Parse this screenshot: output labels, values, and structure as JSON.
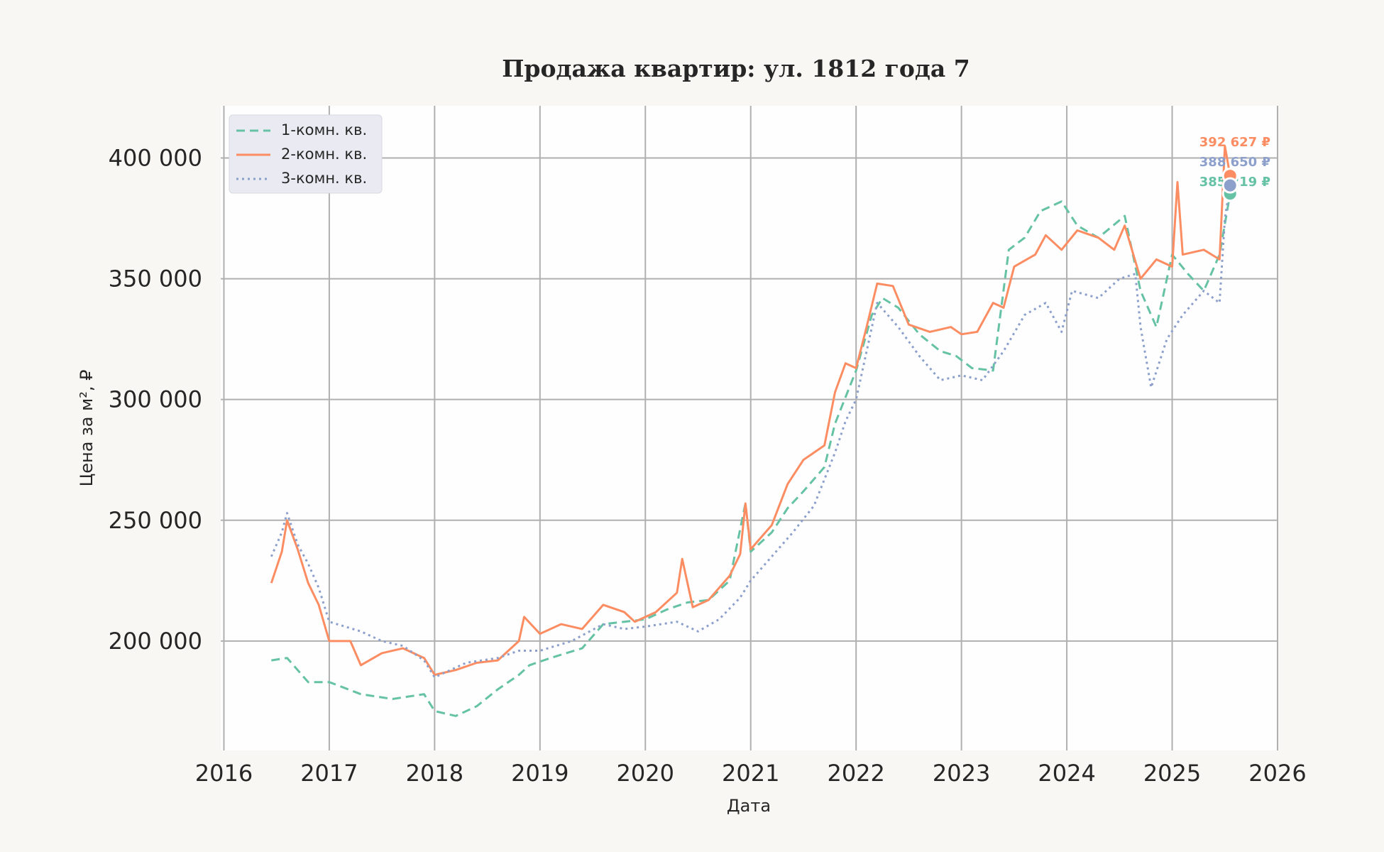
{
  "chart_data": {
    "type": "line",
    "title": "Продажа квартир: ул. 1812 года 7",
    "xlabel": "Дата",
    "ylabel": "Цена за м², ₽",
    "xlim": [
      2015.97,
      2026.0
    ],
    "ylim": [
      154700,
      421600
    ],
    "grid": true,
    "legend_position": "top-left",
    "x_ticks": [
      "2016",
      "2017",
      "2018",
      "2019",
      "2020",
      "2021",
      "2022",
      "2023",
      "2024",
      "2025",
      "2026"
    ],
    "y_ticks": [
      {
        "value": 200000,
        "label": "200 000"
      },
      {
        "value": 250000,
        "label": "250 000"
      },
      {
        "value": 300000,
        "label": "300 000"
      },
      {
        "value": 350000,
        "label": "350 000"
      },
      {
        "value": 400000,
        "label": "400 000"
      }
    ],
    "series": [
      {
        "name": "1-комн. кв.",
        "color": "#66c2a5",
        "style": "dashed",
        "end_label": "385 219 ₽",
        "x": [
          2016.45,
          2016.6,
          2016.8,
          2017.0,
          2017.3,
          2017.6,
          2017.9,
          2018.0,
          2018.2,
          2018.4,
          2018.6,
          2018.8,
          2018.9,
          2019.1,
          2019.4,
          2019.6,
          2019.8,
          2020.0,
          2020.2,
          2020.4,
          2020.6,
          2020.8,
          2020.95,
          2021.0,
          2021.2,
          2021.35,
          2021.5,
          2021.7,
          2021.8,
          2022.0,
          2022.15,
          2022.25,
          2022.4,
          2022.6,
          2022.8,
          2022.95,
          2023.1,
          2023.3,
          2023.45,
          2023.6,
          2023.75,
          2023.95,
          2024.1,
          2024.3,
          2024.55,
          2024.7,
          2024.85,
          2025.0,
          2025.15,
          2025.3,
          2025.45,
          2025.55
        ],
        "y": [
          192000,
          193000,
          183000,
          183000,
          178000,
          176000,
          178000,
          171000,
          169000,
          173000,
          180000,
          186000,
          190000,
          193000,
          197000,
          207000,
          208000,
          209000,
          213000,
          216000,
          217000,
          225000,
          257000,
          237000,
          245000,
          255000,
          262000,
          272000,
          290000,
          312000,
          335000,
          342000,
          338000,
          327000,
          320000,
          318000,
          313000,
          312000,
          362000,
          367000,
          378000,
          382000,
          372000,
          367000,
          376000,
          345000,
          330000,
          360000,
          352000,
          345000,
          360000,
          385219
        ]
      },
      {
        "name": "2-комн. кв.",
        "color": "#fc8d62",
        "style": "solid",
        "end_label": "392 627 ₽",
        "x": [
          2016.45,
          2016.55,
          2016.6,
          2016.7,
          2016.8,
          2016.9,
          2017.0,
          2017.2,
          2017.3,
          2017.5,
          2017.7,
          2017.9,
          2018.0,
          2018.2,
          2018.4,
          2018.6,
          2018.8,
          2018.85,
          2019.0,
          2019.2,
          2019.4,
          2019.6,
          2019.8,
          2019.9,
          2020.1,
          2020.3,
          2020.35,
          2020.45,
          2020.6,
          2020.8,
          2020.9,
          2020.95,
          2021.0,
          2021.2,
          2021.35,
          2021.5,
          2021.7,
          2021.8,
          2021.9,
          2022.0,
          2022.1,
          2022.2,
          2022.35,
          2022.5,
          2022.7,
          2022.9,
          2023.0,
          2023.15,
          2023.3,
          2023.4,
          2023.5,
          2023.7,
          2023.8,
          2023.95,
          2024.1,
          2024.3,
          2024.45,
          2024.55,
          2024.7,
          2024.85,
          2025.0,
          2025.05,
          2025.1,
          2025.3,
          2025.45,
          2025.5,
          2025.55
        ],
        "y": [
          224000,
          237000,
          250000,
          238000,
          224000,
          215000,
          200000,
          200000,
          190000,
          195000,
          197000,
          193000,
          186000,
          188000,
          191000,
          192000,
          200000,
          210000,
          203000,
          207000,
          205000,
          215000,
          212000,
          208000,
          212000,
          220000,
          234000,
          214000,
          217000,
          227000,
          236000,
          257000,
          238000,
          248000,
          265000,
          275000,
          281000,
          303000,
          315000,
          313000,
          330000,
          348000,
          347000,
          331000,
          328000,
          330000,
          327000,
          328000,
          340000,
          338000,
          355000,
          360000,
          368000,
          362000,
          370000,
          367000,
          362000,
          372000,
          350000,
          358000,
          355000,
          390000,
          360000,
          362000,
          358000,
          405000,
          392627
        ]
      },
      {
        "name": "3-комн. кв.",
        "color": "#8da0cb",
        "style": "dotted",
        "end_label": "388 650 ₽",
        "x": [
          2016.45,
          2016.55,
          2016.6,
          2016.7,
          2016.8,
          2016.9,
          2017.0,
          2017.3,
          2017.5,
          2017.7,
          2017.9,
          2018.0,
          2018.3,
          2018.6,
          2018.8,
          2019.0,
          2019.3,
          2019.6,
          2019.8,
          2020.0,
          2020.3,
          2020.5,
          2020.7,
          2020.9,
          2021.0,
          2021.2,
          2021.4,
          2021.6,
          2021.8,
          2021.9,
          2022.0,
          2022.2,
          2022.4,
          2022.6,
          2022.8,
          2023.0,
          2023.2,
          2023.4,
          2023.6,
          2023.8,
          2023.95,
          2024.05,
          2024.3,
          2024.5,
          2024.65,
          2024.7,
          2024.8,
          2024.95,
          2025.1,
          2025.3,
          2025.45,
          2025.5,
          2025.55
        ],
        "y": [
          235000,
          245000,
          253000,
          240000,
          232000,
          222000,
          208000,
          204000,
          200000,
          198000,
          192000,
          185000,
          191000,
          193000,
          196000,
          196000,
          200000,
          207000,
          205000,
          206000,
          208000,
          204000,
          209000,
          218000,
          225000,
          235000,
          245000,
          256000,
          278000,
          291000,
          300000,
          340000,
          330000,
          318000,
          308000,
          310000,
          308000,
          320000,
          335000,
          340000,
          328000,
          345000,
          342000,
          350000,
          352000,
          330000,
          305000,
          325000,
          335000,
          345000,
          340000,
          375000,
          388650
        ]
      }
    ]
  }
}
